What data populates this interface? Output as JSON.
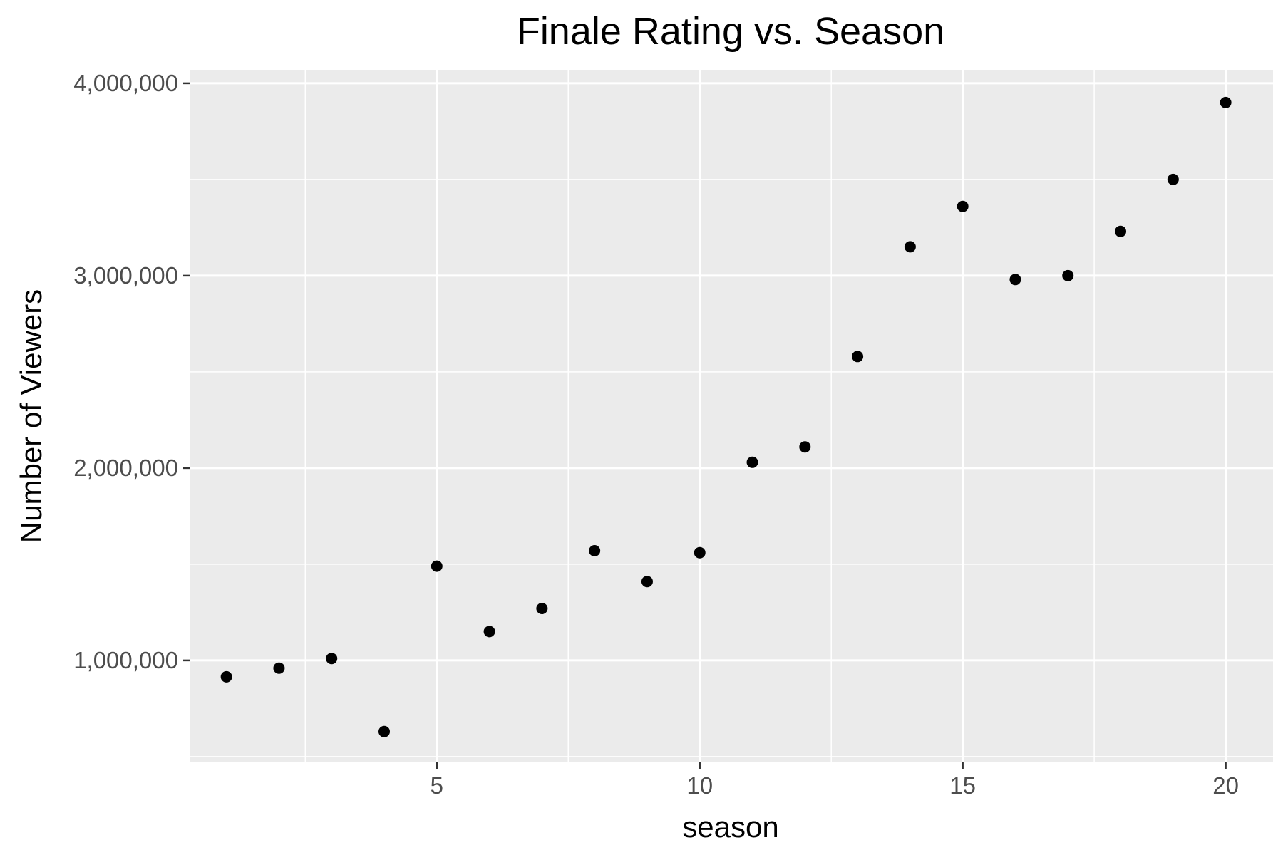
{
  "chart_data": {
    "type": "scatter",
    "title": "Finale Rating vs. Season",
    "xlabel": "season",
    "ylabel": "Number of Viewers",
    "xlim": [
      0.3,
      20.9
    ],
    "ylim": [
      470000,
      4070000
    ],
    "x_ticks": [
      5,
      10,
      15,
      20
    ],
    "x_tick_labels": [
      "5",
      "10",
      "15",
      "20"
    ],
    "x_minor_ticks": [
      2.5,
      7.5,
      12.5,
      17.5
    ],
    "y_ticks": [
      1000000,
      2000000,
      3000000,
      4000000
    ],
    "y_tick_labels": [
      "1,000,000",
      "2,000,000",
      "3,000,000",
      "4,000,000"
    ],
    "y_minor_ticks": [
      500000,
      1500000,
      2500000,
      3500000
    ],
    "grid": true,
    "legend": "none",
    "colors": {
      "panel": "#ebebeb",
      "grid": "#ffffff",
      "point": "#000000",
      "tick_label": "#4d4d4d"
    },
    "x": [
      1,
      2,
      3,
      4,
      5,
      6,
      7,
      8,
      9,
      10,
      11,
      12,
      13,
      14,
      15,
      16,
      17,
      18,
      19,
      20
    ],
    "y": [
      915000,
      960000,
      1010000,
      630000,
      1490000,
      1150000,
      1270000,
      1570000,
      1410000,
      1560000,
      2030000,
      2110000,
      2580000,
      3150000,
      3360000,
      2980000,
      3000000,
      3230000,
      3500000,
      3900000
    ]
  }
}
